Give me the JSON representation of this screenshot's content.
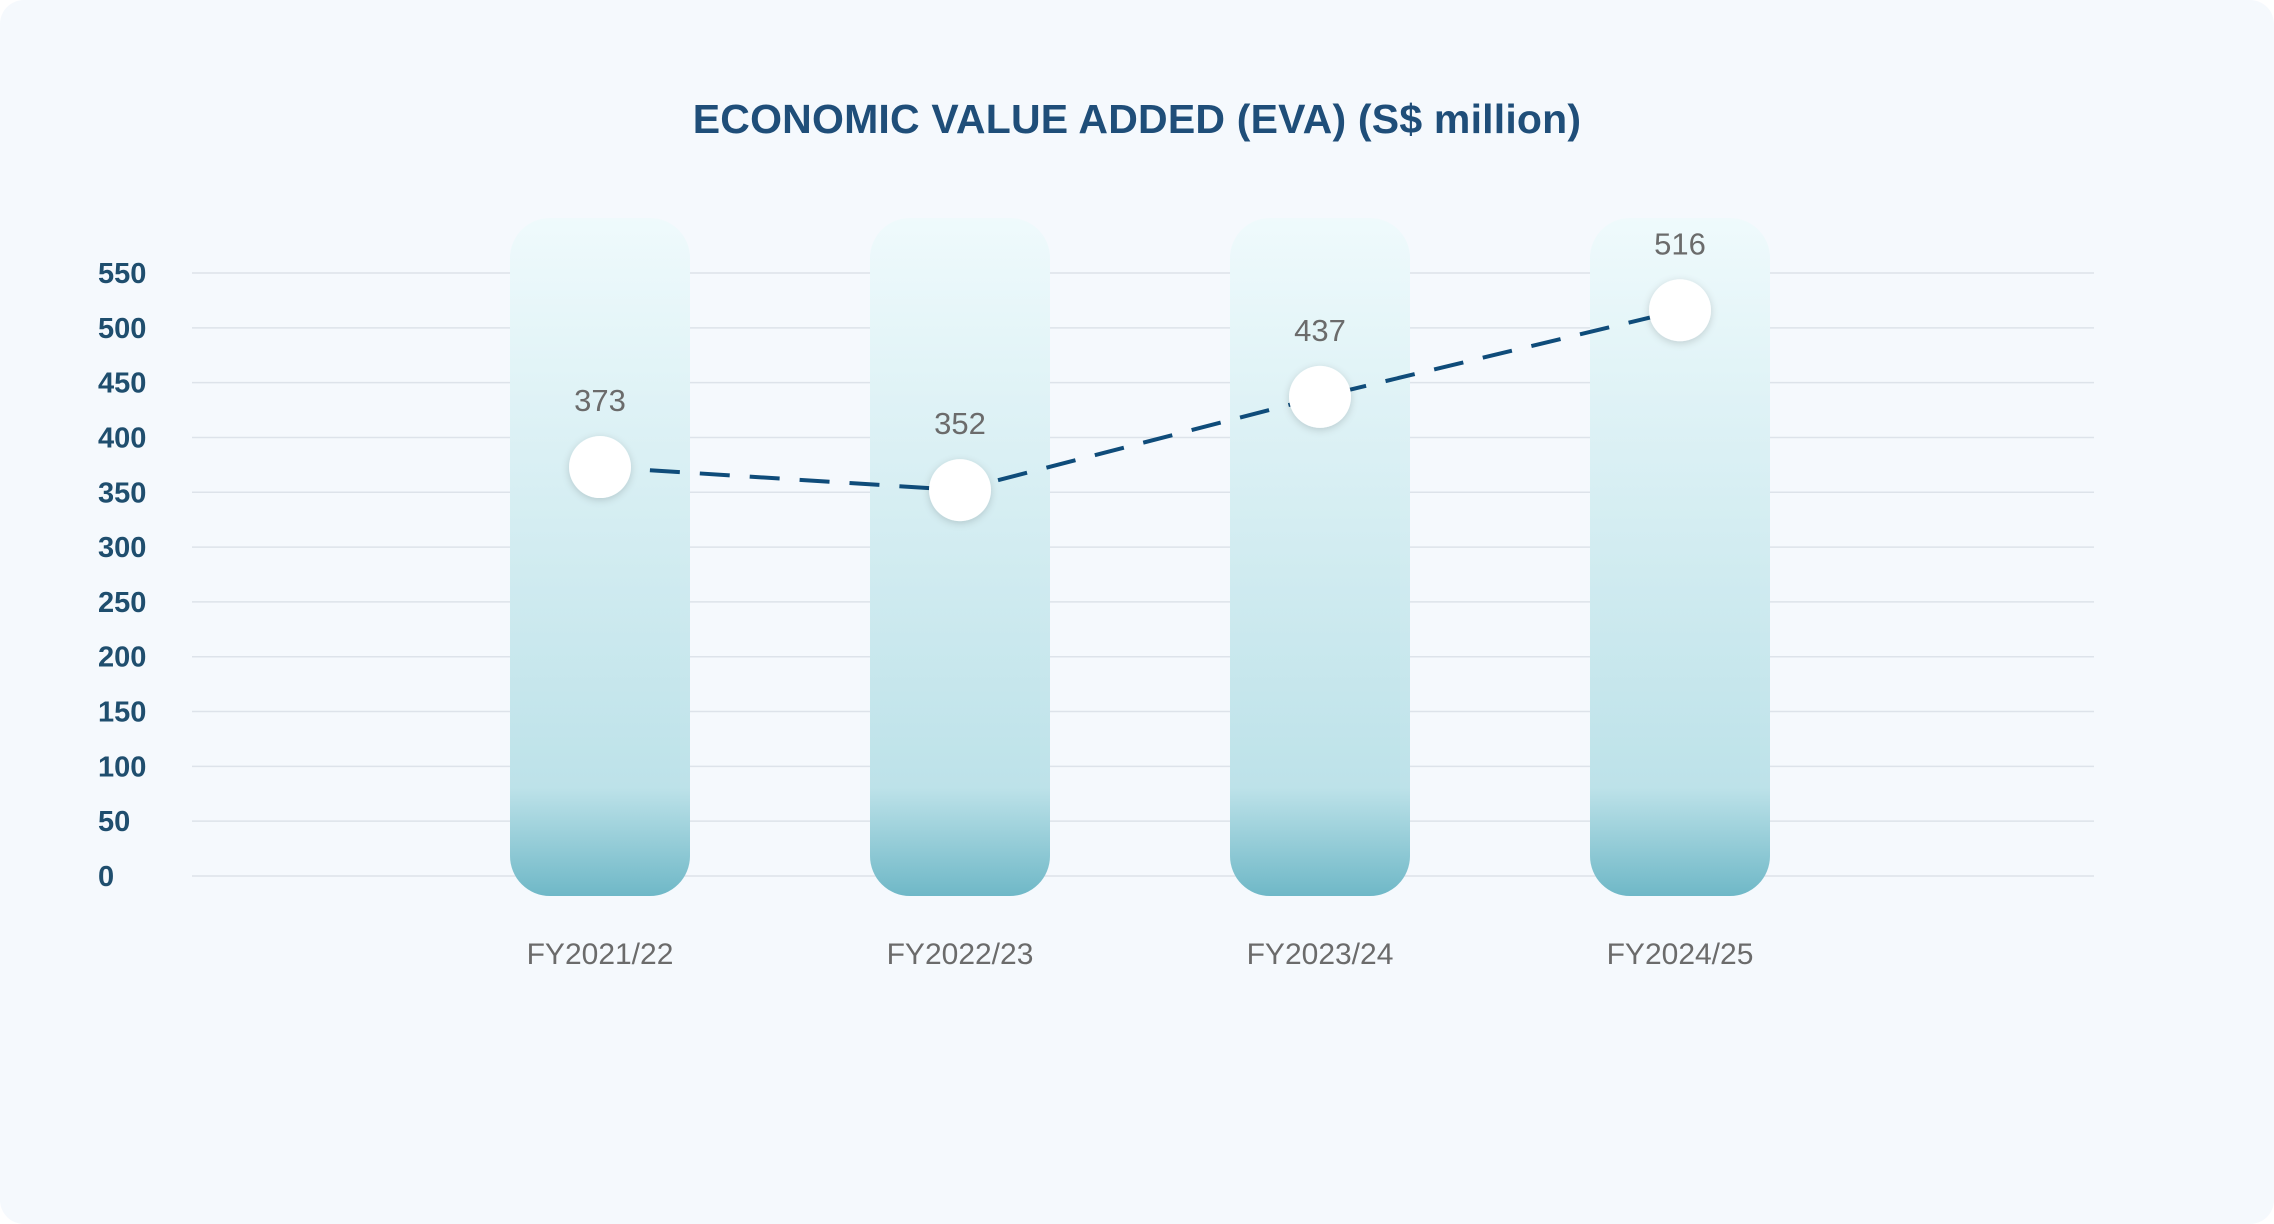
{
  "chart_data": {
    "type": "line",
    "title": "ECONOMIC VALUE ADDED (EVA) (S$ million)",
    "categories": [
      "FY2021/22",
      "FY2022/23",
      "FY2023/24",
      "FY2024/25"
    ],
    "series": [
      {
        "name": "EVA",
        "values": [
          373,
          352,
          437,
          516
        ]
      }
    ],
    "data_labels": [
      "373",
      "352",
      "437",
      "516"
    ],
    "yticks": [
      0,
      50,
      100,
      150,
      200,
      250,
      300,
      350,
      400,
      450,
      500,
      550
    ],
    "ylim": [
      0,
      550
    ],
    "xlabel": "",
    "ylabel": "",
    "grid": true,
    "colors": {
      "line": "#0f4c7a",
      "title": "#1f4e79",
      "bar_top": "#effafc",
      "bar_bottom": "#6fb8c7",
      "marker": "#ffffff",
      "grid": "#dde3ea"
    }
  }
}
